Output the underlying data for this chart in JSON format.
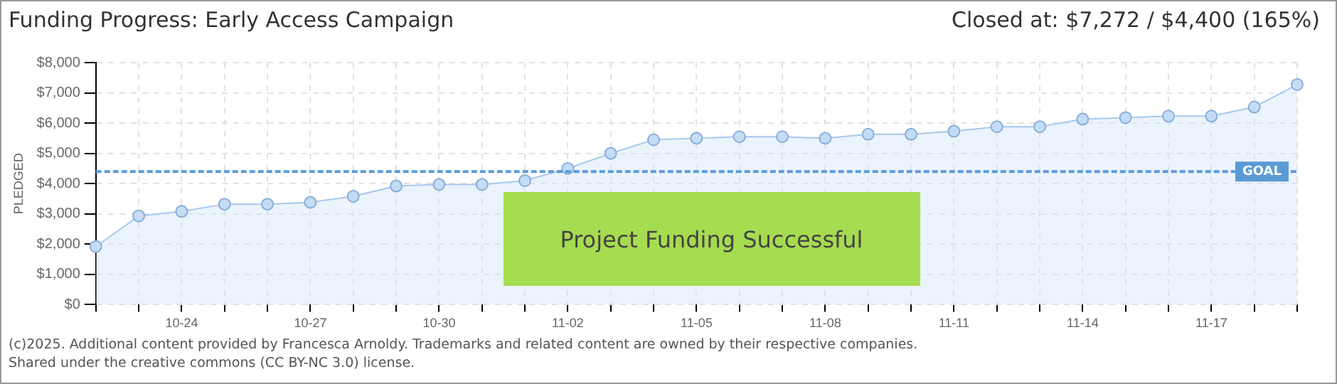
{
  "chart_data": {
    "type": "area",
    "title": "Funding Progress: Early Access Campaign",
    "subtitle": "Closed at: $7,272 / $4,400 (165%)",
    "ylabel": "PLEDGED",
    "categories": [
      null,
      null,
      "10-24",
      null,
      null,
      "10-27",
      null,
      null,
      "10-30",
      null,
      null,
      "11-02",
      null,
      null,
      "11-05",
      null,
      null,
      "11-08",
      null,
      null,
      "11-11",
      null,
      null,
      "11-14",
      null,
      null,
      "11-17",
      null,
      null
    ],
    "values": [
      1920,
      2930,
      3080,
      3320,
      3320,
      3380,
      3580,
      3920,
      3970,
      3970,
      4100,
      4500,
      5000,
      5450,
      5500,
      5550,
      5550,
      5500,
      5630,
      5630,
      5730,
      5880,
      5880,
      6130,
      6180,
      6230,
      6230,
      6530,
      7272
    ],
    "color": "#a8c8ee",
    "marker": "circle",
    "grid": true,
    "ylim": [
      0,
      8000
    ],
    "yticks": [
      {
        "value": 0,
        "label": "$0"
      },
      {
        "value": 1000,
        "label": "$1,000"
      },
      {
        "value": 2000,
        "label": "$2,000"
      },
      {
        "value": 3000,
        "label": "$3,000"
      },
      {
        "value": 4000,
        "label": "$4,000"
      },
      {
        "value": 5000,
        "label": "$5,000"
      },
      {
        "value": 6000,
        "label": "$6,000"
      },
      {
        "value": 7000,
        "label": "$7,000"
      },
      {
        "value": 8000,
        "label": "$8,000"
      }
    ],
    "ref_lines": [
      {
        "axis": "y",
        "value": 4400,
        "label": "GOAL",
        "color": "#5b9bd5",
        "line_style": "dashed"
      }
    ],
    "annotations": [
      "Project Funding Successful",
      "(c)2025. Additional content provided by Francesca Arnoldy. Trademarks and related content are owned by their respective companies.",
      "Shared under the creative commons (CC BY-NC 3.0) license."
    ]
  }
}
